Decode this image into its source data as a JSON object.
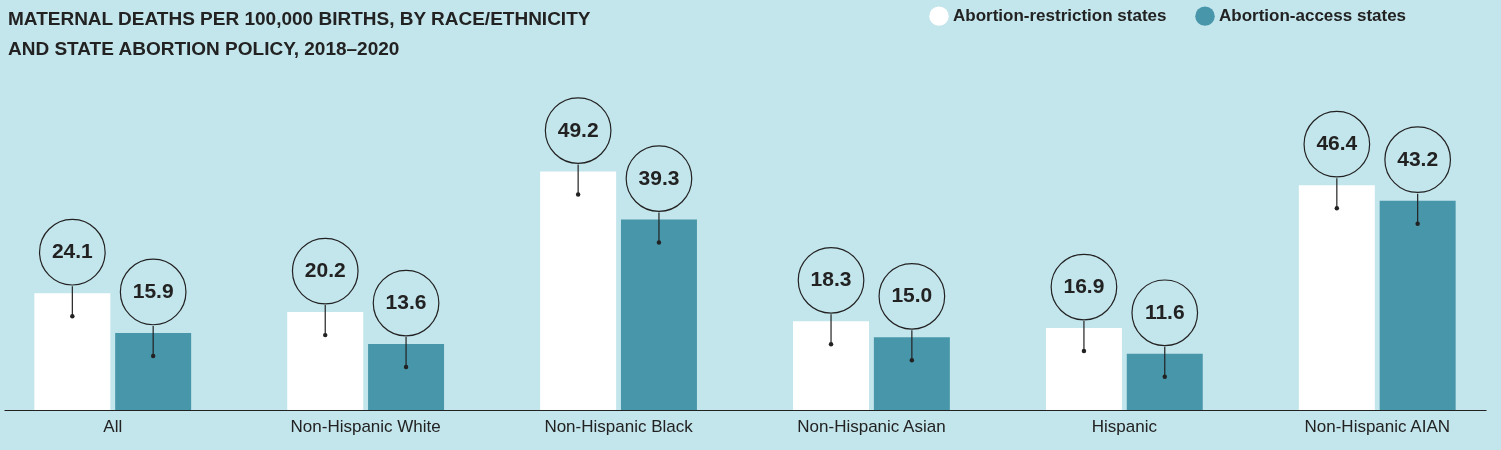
{
  "chart_data": {
    "type": "bar",
    "title": "MATERNAL DEATHS PER 100,000 BIRTHS, BY RACE/ETHNICITY AND STATE ABORTION POLICY, 2018–2020",
    "categories": [
      "All",
      "Non-Hispanic White",
      "Non-Hispanic Black",
      "Non-Hispanic Asian",
      "Hispanic",
      "Non-Hispanic AIAN"
    ],
    "series": [
      {
        "name": "Abortion-restriction states",
        "color": "#ffffff",
        "values": [
          24.1,
          20.2,
          49.2,
          18.3,
          16.9,
          46.4
        ],
        "value_labels": [
          "24.1",
          "20.2",
          "49.2",
          "18.3",
          "16.9",
          "46.4"
        ]
      },
      {
        "name": "Abortion-access states",
        "color": "#4896a9",
        "values": [
          15.9,
          13.6,
          39.3,
          15.0,
          11.6,
          43.2
        ],
        "value_labels": [
          "15.9",
          "13.6",
          "39.3",
          "15.0",
          "11.6",
          "43.2"
        ]
      }
    ],
    "legend": "top right",
    "tick_labels": "x"
  }
}
